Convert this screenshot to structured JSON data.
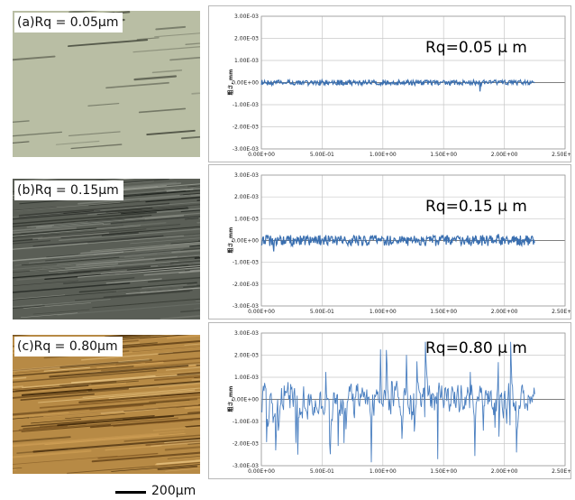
{
  "scale_bar": {
    "label": "200μm"
  },
  "panels": [
    {
      "micro_label": "(a)Rq = 0.05μm",
      "micro_texture": "smooth-gray-green",
      "annotation": "Rq=0.05 μ m",
      "amplitude": 0.00012,
      "spikes": [
        [
          1.0,
          0.00013
        ],
        [
          1.8,
          -0.0004
        ],
        [
          0.45,
          -8e-05
        ]
      ]
    },
    {
      "micro_label": "(b)Rq = 0.15μm",
      "micro_texture": "dark-streaked",
      "annotation": "Rq=0.15 μ m",
      "amplitude": 0.00025,
      "spikes": [
        [
          0.1,
          -0.0005
        ],
        [
          1.95,
          0.0003
        ]
      ]
    },
    {
      "micro_label": "(c)Rq = 0.80μm",
      "micro_texture": "brown-streaked",
      "annotation": "Rq=0.80 μ m",
      "amplitude": 0.0011,
      "spikes": [
        [
          0.3,
          -0.0025
        ],
        [
          1.45,
          -0.0027
        ],
        [
          2.05,
          0.0026
        ],
        [
          1.35,
          0.0026
        ],
        [
          2.1,
          -0.0024
        ]
      ]
    }
  ],
  "chart_data": [
    {
      "type": "line",
      "title": "",
      "xlabel": "",
      "ylabel": "粗さ, mm",
      "xlim": [
        0,
        2.5
      ],
      "ylim": [
        -0.003,
        0.003
      ],
      "x_range_data": [
        0,
        2.25
      ],
      "x_ticks": [
        "0.00E+00",
        "5.00E-01",
        "1.00E+00",
        "1.50E+00",
        "2.00E+00",
        "2.50E+00"
      ],
      "y_ticks": [
        "3.00E-03",
        "2.00E-03",
        "1.00E-03",
        "0.00E+00",
        "-1.00E-03",
        "-2.00E-03",
        "-3.00E-03"
      ],
      "series_color": "#3a6fb0",
      "grid": true
    },
    {
      "type": "line",
      "title": "",
      "xlabel": "",
      "ylabel": "粗さ, mm",
      "xlim": [
        0,
        2.5
      ],
      "ylim": [
        -0.003,
        0.003
      ],
      "x_range_data": [
        0,
        2.25
      ],
      "x_ticks": [
        "0.00E+00",
        "5.00E-01",
        "1.00E+00",
        "1.50E+00",
        "2.00E+00",
        "2.50E+00"
      ],
      "y_ticks": [
        "3.00E-03",
        "2.00E-03",
        "1.00E-03",
        "0.00E+00",
        "-1.00E-03",
        "-2.00E-03",
        "-3.00E-03"
      ],
      "series_color": "#3a6fb0",
      "grid": true
    },
    {
      "type": "line",
      "title": "",
      "xlabel": "",
      "ylabel": "粗さ, mm",
      "xlim": [
        0,
        2.5
      ],
      "ylim": [
        -0.003,
        0.003
      ],
      "x_range_data": [
        0,
        2.25
      ],
      "x_ticks": [
        "0.00E+00",
        "5.00E-01",
        "1.00E+00",
        "1.50E+00",
        "2.00E+00",
        "2.50E+00"
      ],
      "y_ticks": [
        "3.00E-03",
        "2.00E-03",
        "1.00E-03",
        "0.00E+00",
        "-1.00E-03",
        "-2.00E-03",
        "-3.00E-03"
      ],
      "series_color": "#4a7fc0",
      "grid": true
    }
  ]
}
